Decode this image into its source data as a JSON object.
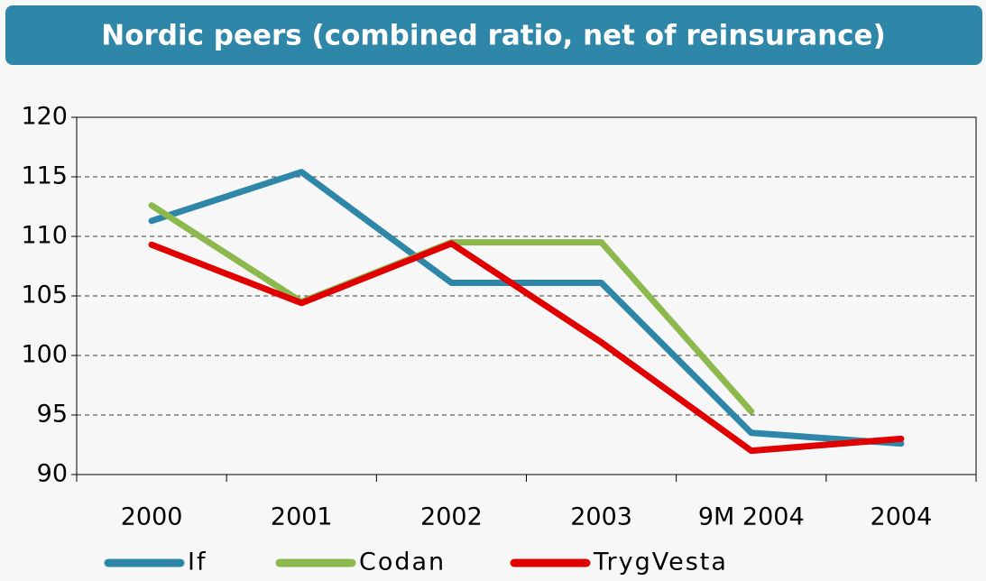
{
  "chart_data": {
    "type": "line",
    "title": "Nordic peers (combined ratio, net of reinsurance)",
    "categories": [
      "2000",
      "2001",
      "2002",
      "2003",
      "9M 2004",
      "2004"
    ],
    "series": [
      {
        "name": "If",
        "color": "#2e86a8",
        "values": [
          111.3,
          115.4,
          106.1,
          106.1,
          93.5,
          92.6
        ]
      },
      {
        "name": "Codan",
        "color": "#8cb84e",
        "values": [
          112.6,
          104.5,
          109.5,
          109.5,
          95.3,
          null
        ]
      },
      {
        "name": "TrygVesta",
        "color": "#e00000",
        "values": [
          109.3,
          104.4,
          109.4,
          101.1,
          92.0,
          93.0
        ]
      }
    ],
    "ylim": [
      90,
      120
    ],
    "yticks": [
      90,
      95,
      100,
      105,
      110,
      115,
      120
    ],
    "grid": true
  }
}
